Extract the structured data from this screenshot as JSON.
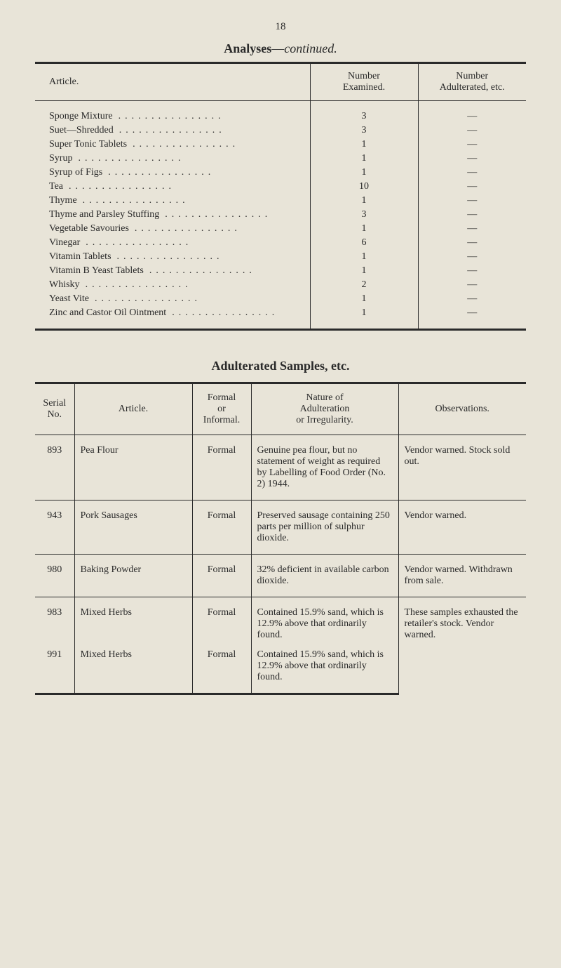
{
  "page_number": "18",
  "analyses_title_bold": "Analyses",
  "analyses_title_dash": "—",
  "analyses_title_italic": "continued.",
  "analyses": {
    "headers": {
      "article": "Article.",
      "examined": "Number\nExamined.",
      "adulterated": "Number\nAdulterated, etc."
    },
    "rows": [
      {
        "article": "Sponge Mixture",
        "examined": "3",
        "adulterated": "—"
      },
      {
        "article": "Suet—Shredded",
        "examined": "3",
        "adulterated": "—"
      },
      {
        "article": "Super Tonic Tablets",
        "examined": "1",
        "adulterated": "—"
      },
      {
        "article": "Syrup",
        "examined": "1",
        "adulterated": "—"
      },
      {
        "article": "Syrup of Figs",
        "examined": "1",
        "adulterated": "—"
      },
      {
        "article": "Tea",
        "examined": "10",
        "adulterated": "—"
      },
      {
        "article": "Thyme",
        "examined": "1",
        "adulterated": "—"
      },
      {
        "article": "Thyme and Parsley Stuffing",
        "examined": "3",
        "adulterated": "—"
      },
      {
        "article": "Vegetable Savouries",
        "examined": "1",
        "adulterated": "—"
      },
      {
        "article": "Vinegar",
        "examined": "6",
        "adulterated": "—"
      },
      {
        "article": "Vitamin Tablets",
        "examined": "1",
        "adulterated": "—"
      },
      {
        "article": "Vitamin B Yeast Tablets",
        "examined": "1",
        "adulterated": "—"
      },
      {
        "article": "Whisky",
        "examined": "2",
        "adulterated": "—"
      },
      {
        "article": "Yeast Vite",
        "examined": "1",
        "adulterated": "—"
      },
      {
        "article": "Zinc and Castor Oil Ointment",
        "examined": "1",
        "adulterated": "—"
      }
    ]
  },
  "adulterated_title": "Adulterated Samples, etc.",
  "adulterated": {
    "headers": {
      "serial": "Serial\nNo.",
      "article": "Article.",
      "formal": "Formal\nor\nInformal.",
      "nature": "Nature of\nAdulteration\nor Irregularity.",
      "observations": "Observations."
    },
    "rows": [
      {
        "serial": "893",
        "article": "Pea Flour",
        "formal": "Formal",
        "nature": "Genuine pea flour, but no statement of weight as required by Labelling of Food Order (No. 2) 1944.",
        "observations": "Vendor warned. Stock sold out."
      },
      {
        "serial": "943",
        "article": "Pork Sausages",
        "formal": "Formal",
        "nature": "Preserved sausage containing 250 parts per million of sulphur dioxide.",
        "observations": "Vendor warned."
      },
      {
        "serial": "980",
        "article": "Baking Powder",
        "formal": "Formal",
        "nature": "32% deficient in available carbon dioxide.",
        "observations": "Vendor warned. Withdrawn from sale."
      },
      {
        "serial": "983",
        "article": "Mixed Herbs",
        "formal": "Formal",
        "nature": "Contained 15.9% sand, which is 12.9% above that ordinarily found.",
        "observations": ""
      },
      {
        "serial": "991",
        "article": "Mixed Herbs",
        "formal": "Formal",
        "nature": "Contained 15.9% sand, which is 12.9% above that ordinarily found.",
        "observations": "These samples exhausted the retailer's stock. Vendor warned."
      }
    ]
  }
}
